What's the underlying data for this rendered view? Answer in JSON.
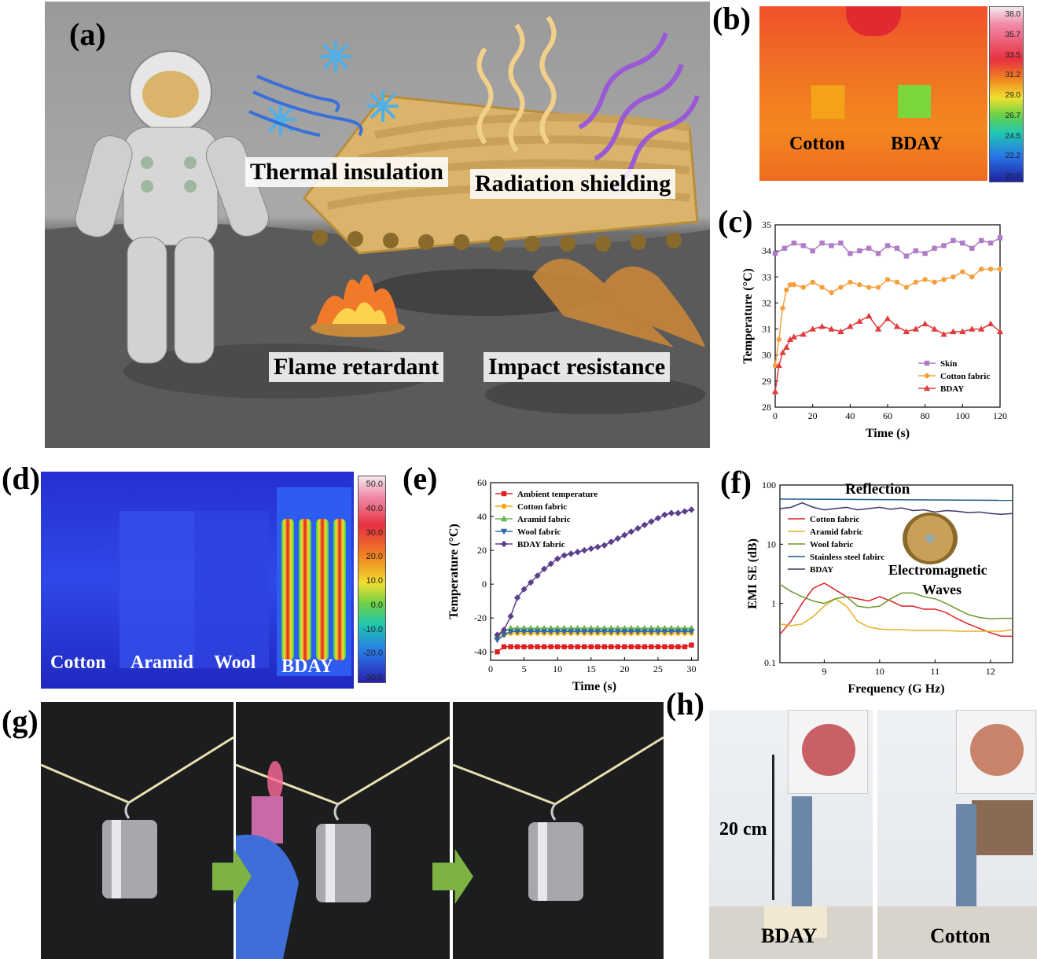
{
  "panels": {
    "a": {
      "label": "(a)",
      "features": [
        "Thermal insulation",
        "Radiation shielding",
        "Flame retardant",
        "Impact resistance"
      ]
    },
    "b": {
      "label": "(b)",
      "samples": [
        "Cotton",
        "BDAY"
      ],
      "colorbar_ticks": [
        "38.0",
        "35.7",
        "33.5",
        "31.2",
        "29.0",
        "26.7",
        "24.5",
        "22.2",
        "20.0"
      ]
    },
    "c": {
      "label": "(c)"
    },
    "d": {
      "label": "(d)",
      "samples": [
        "Cotton",
        "Aramid",
        "Wool",
        "BDAY"
      ],
      "colorbar_ticks": [
        "50.0",
        "40.0",
        "30.0",
        "20.0",
        "10.0",
        "0.0",
        "-10.0",
        "-20.0",
        "-30.0"
      ]
    },
    "e": {
      "label": "(e)"
    },
    "f": {
      "label": "(f)",
      "annotations": [
        "Reflection",
        "Electromagnetic",
        "Waves"
      ]
    },
    "g": {
      "label": "(g)"
    },
    "h": {
      "label": "(h)",
      "height_label": "20 cm",
      "samples": [
        "BDAY",
        "Cotton"
      ]
    }
  },
  "chart_data": [
    {
      "type": "line",
      "panel": "c",
      "xlabel": "Time (s)",
      "ylabel": "Temperature (°C)",
      "xlim": [
        0,
        120
      ],
      "ylim": [
        28,
        35
      ],
      "xticks": [
        0,
        20,
        40,
        60,
        80,
        100,
        120
      ],
      "yticks": [
        28,
        29,
        30,
        31,
        32,
        33,
        34,
        35
      ],
      "legend_position": "bottom-right",
      "series": [
        {
          "name": "Skin",
          "color": "#b07cc6",
          "marker": "square",
          "x": [
            0,
            5,
            10,
            15,
            20,
            25,
            30,
            35,
            40,
            45,
            50,
            55,
            60,
            65,
            70,
            75,
            80,
            85,
            90,
            95,
            100,
            105,
            110,
            115,
            120
          ],
          "y": [
            33.9,
            34.1,
            34.3,
            34.2,
            34.0,
            34.3,
            34.2,
            34.3,
            33.9,
            34.0,
            34.1,
            33.9,
            34.2,
            34.1,
            33.8,
            34.0,
            33.9,
            34.1,
            34.2,
            34.4,
            34.3,
            34.1,
            34.4,
            34.3,
            34.5
          ]
        },
        {
          "name": "Cotton fabric",
          "color": "#f5a03c",
          "marker": "circle",
          "x": [
            0,
            2,
            4,
            6,
            8,
            10,
            15,
            20,
            25,
            30,
            35,
            40,
            45,
            50,
            55,
            60,
            65,
            70,
            75,
            80,
            85,
            90,
            95,
            100,
            105,
            110,
            115,
            120
          ],
          "y": [
            29.6,
            30.6,
            31.8,
            32.5,
            32.7,
            32.7,
            32.6,
            32.8,
            32.6,
            32.4,
            32.6,
            32.8,
            32.7,
            32.6,
            32.6,
            32.9,
            32.8,
            32.6,
            32.8,
            32.9,
            32.8,
            32.9,
            33.0,
            33.2,
            33.0,
            33.3,
            33.3,
            33.3
          ]
        },
        {
          "name": "BDAY",
          "color": "#e03c3c",
          "marker": "triangle",
          "x": [
            0,
            2,
            4,
            6,
            8,
            10,
            15,
            20,
            25,
            30,
            35,
            40,
            45,
            50,
            55,
            60,
            65,
            70,
            75,
            80,
            85,
            90,
            95,
            100,
            105,
            110,
            115,
            120
          ],
          "y": [
            28.6,
            29.6,
            30.1,
            30.3,
            30.6,
            30.7,
            30.8,
            31.0,
            31.1,
            31.0,
            30.9,
            31.1,
            31.3,
            31.5,
            31.0,
            31.4,
            31.1,
            30.9,
            31.0,
            31.2,
            31.0,
            30.8,
            30.9,
            30.9,
            31.0,
            31.0,
            31.2,
            30.9
          ]
        }
      ]
    },
    {
      "type": "line",
      "panel": "e",
      "xlabel": "Time (s)",
      "ylabel": "Temperature (°C)",
      "xlim": [
        0,
        31
      ],
      "ylim": [
        -45,
        60
      ],
      "xticks": [
        0,
        5,
        10,
        15,
        20,
        25,
        30
      ],
      "yticks": [
        -40,
        -20,
        0,
        20,
        40,
        60
      ],
      "legend_position": "top-left",
      "series": [
        {
          "name": "Ambient temperature",
          "color": "#e02020",
          "marker": "square",
          "x": [
            1,
            2,
            3,
            4,
            5,
            6,
            7,
            8,
            9,
            10,
            11,
            12,
            13,
            14,
            15,
            16,
            17,
            18,
            19,
            20,
            21,
            22,
            23,
            24,
            25,
            26,
            27,
            28,
            29,
            30
          ],
          "y": [
            -40,
            -37,
            -37,
            -37,
            -37,
            -37,
            -37,
            -37,
            -37,
            -37,
            -37,
            -37,
            -37,
            -37,
            -37,
            -37,
            -37,
            -37,
            -37,
            -37,
            -37,
            -37,
            -37,
            -37,
            -37,
            -37,
            -37,
            -37,
            -37,
            -36
          ]
        },
        {
          "name": "Cotton fabric",
          "color": "#f5a800",
          "marker": "circle",
          "x": [
            1,
            2,
            3,
            4,
            5,
            6,
            7,
            8,
            9,
            10,
            11,
            12,
            13,
            14,
            15,
            16,
            17,
            18,
            19,
            20,
            21,
            22,
            23,
            24,
            25,
            26,
            27,
            28,
            29,
            30
          ],
          "y": [
            -32,
            -30,
            -29,
            -29,
            -29,
            -29,
            -29,
            -29,
            -29,
            -29,
            -29,
            -29,
            -29,
            -29,
            -29,
            -29,
            -29,
            -29,
            -29,
            -29,
            -29,
            -29,
            -29,
            -29,
            -29,
            -29,
            -29,
            -29,
            -29,
            -29
          ]
        },
        {
          "name": "Aramid fabric",
          "color": "#6ab04c",
          "marker": "triangle",
          "x": [
            1,
            2,
            3,
            4,
            5,
            6,
            7,
            8,
            9,
            10,
            11,
            12,
            13,
            14,
            15,
            16,
            17,
            18,
            19,
            20,
            21,
            22,
            23,
            24,
            25,
            26,
            27,
            28,
            29,
            30
          ],
          "y": [
            -31,
            -28,
            -26,
            -26,
            -26,
            -26,
            -26,
            -26,
            -26,
            -26,
            -26,
            -26,
            -26,
            -26,
            -26,
            -26,
            -26,
            -26,
            -26,
            -26,
            -26,
            -26,
            -26,
            -26,
            -26,
            -26,
            -26,
            -26,
            -26,
            -26
          ]
        },
        {
          "name": "Wool fabric",
          "color": "#2e6ca8",
          "marker": "triangle-down",
          "x": [
            1,
            2,
            3,
            4,
            5,
            6,
            7,
            8,
            9,
            10,
            11,
            12,
            13,
            14,
            15,
            16,
            17,
            18,
            19,
            20,
            21,
            22,
            23,
            24,
            25,
            26,
            27,
            28,
            29,
            30
          ],
          "y": [
            -33,
            -30,
            -28,
            -28,
            -28,
            -28,
            -28,
            -28,
            -28,
            -28,
            -28,
            -28,
            -28,
            -28,
            -28,
            -28,
            -28,
            -28,
            -28,
            -28,
            -28,
            -28,
            -28,
            -28,
            -28,
            -28,
            -28,
            -28,
            -28,
            -28
          ]
        },
        {
          "name": "BDAY fabric",
          "color": "#5b3f8c",
          "marker": "diamond",
          "x": [
            1,
            2,
            3,
            4,
            5,
            6,
            7,
            8,
            9,
            10,
            11,
            12,
            13,
            14,
            15,
            16,
            17,
            18,
            19,
            20,
            21,
            22,
            23,
            24,
            25,
            26,
            27,
            28,
            29,
            30
          ],
          "y": [
            -30,
            -27,
            -19,
            -8,
            -3,
            1,
            5,
            9,
            12,
            15,
            17,
            18,
            19,
            20,
            21,
            22,
            23,
            25,
            27,
            29,
            31,
            33,
            35,
            37,
            39,
            41,
            42,
            42,
            43,
            44
          ]
        }
      ]
    },
    {
      "type": "line",
      "panel": "f",
      "xlabel": "Frequency (G Hz)",
      "ylabel": "EMI SE (dB)",
      "xscale": "linear",
      "yscale": "log",
      "xlim": [
        8.2,
        12.4
      ],
      "ylim": [
        0.1,
        100
      ],
      "xticks": [
        9,
        10,
        11,
        12
      ],
      "yticks": [
        0.1,
        1,
        10,
        100
      ],
      "legend_position": "left",
      "series": [
        {
          "name": "Cotton fabric",
          "color": "#e02020",
          "x": [
            8.2,
            8.4,
            8.6,
            8.8,
            9.0,
            9.2,
            9.4,
            9.6,
            9.8,
            10.0,
            10.2,
            10.4,
            10.6,
            10.8,
            11.0,
            11.2,
            11.4,
            11.6,
            11.8,
            12.0,
            12.2,
            12.4
          ],
          "y": [
            0.3,
            0.5,
            1.0,
            1.8,
            2.2,
            1.7,
            1.3,
            1.2,
            1.1,
            1.3,
            1.1,
            0.9,
            0.9,
            0.8,
            0.8,
            0.7,
            0.55,
            0.45,
            0.38,
            0.32,
            0.28,
            0.28
          ]
        },
        {
          "name": "Aramid fabric",
          "color": "#e8b020",
          "x": [
            8.2,
            8.4,
            8.6,
            8.8,
            9.0,
            9.2,
            9.4,
            9.6,
            9.8,
            10.0,
            10.2,
            10.4,
            10.6,
            10.8,
            11.0,
            11.2,
            11.4,
            11.6,
            11.8,
            12.0,
            12.2,
            12.4
          ],
          "y": [
            0.45,
            0.42,
            0.45,
            0.6,
            0.9,
            1.2,
            0.9,
            0.5,
            0.4,
            0.37,
            0.36,
            0.36,
            0.35,
            0.35,
            0.35,
            0.35,
            0.34,
            0.34,
            0.34,
            0.34,
            0.34,
            0.36
          ]
        },
        {
          "name": "Wool fabric",
          "color": "#6a9a2a",
          "x": [
            8.2,
            8.4,
            8.6,
            8.8,
            9.0,
            9.2,
            9.4,
            9.6,
            9.8,
            10.0,
            10.2,
            10.4,
            10.6,
            10.8,
            11.0,
            11.2,
            11.4,
            11.6,
            11.8,
            12.0,
            12.2,
            12.4
          ],
          "y": [
            2.1,
            1.6,
            1.3,
            1.1,
            1.0,
            1.2,
            1.3,
            0.9,
            0.85,
            0.9,
            1.2,
            1.5,
            1.5,
            1.3,
            1.2,
            1.0,
            0.8,
            0.65,
            0.58,
            0.55,
            0.56,
            0.56
          ]
        },
        {
          "name": "Stainless steel fabirc",
          "color": "#1f5a8c",
          "x": [
            8.2,
            12.4
          ],
          "y": [
            58,
            55
          ]
        },
        {
          "name": "BDAY",
          "color": "#3a3a6a",
          "x": [
            8.2,
            8.4,
            8.6,
            8.8,
            9.0,
            9.2,
            9.4,
            9.6,
            9.8,
            10.0,
            10.2,
            10.4,
            10.6,
            10.8,
            11.0,
            11.2,
            11.4,
            11.6,
            11.8,
            12.0,
            12.2,
            12.4
          ],
          "y": [
            40,
            42,
            50,
            42,
            38,
            40,
            42,
            38,
            40,
            42,
            39,
            41,
            37,
            38,
            35,
            37,
            36,
            34,
            35,
            33,
            32,
            33
          ]
        }
      ]
    }
  ]
}
